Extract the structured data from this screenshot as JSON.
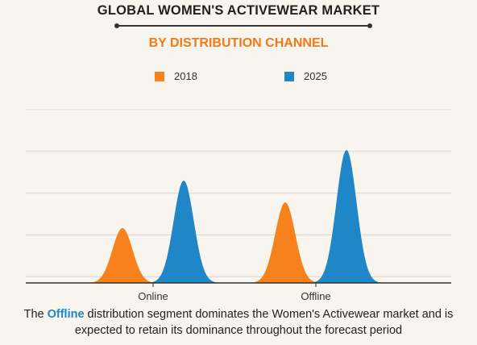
{
  "chart_data": {
    "type": "area",
    "title": "GLOBAL WOMEN'S ACTIVEWEAR MARKET",
    "subtitle": "BY DISTRIBUTION CHANNEL",
    "categories": [
      "Online",
      "Offline"
    ],
    "series": [
      {
        "name": "2018",
        "color": "#f7811d",
        "values": [
          68,
          100
        ]
      },
      {
        "name": "2025",
        "color": "#1f86c8",
        "values": [
          127,
          165
        ]
      }
    ],
    "ylim": [
      0,
      215
    ],
    "grid": true,
    "legend_position": "top"
  },
  "footer": {
    "before": "The ",
    "highlight": "Offline",
    "after": " distribution segment dominates the Women's Activewear market and is expected to retain its dominance throughout the forecast period"
  }
}
